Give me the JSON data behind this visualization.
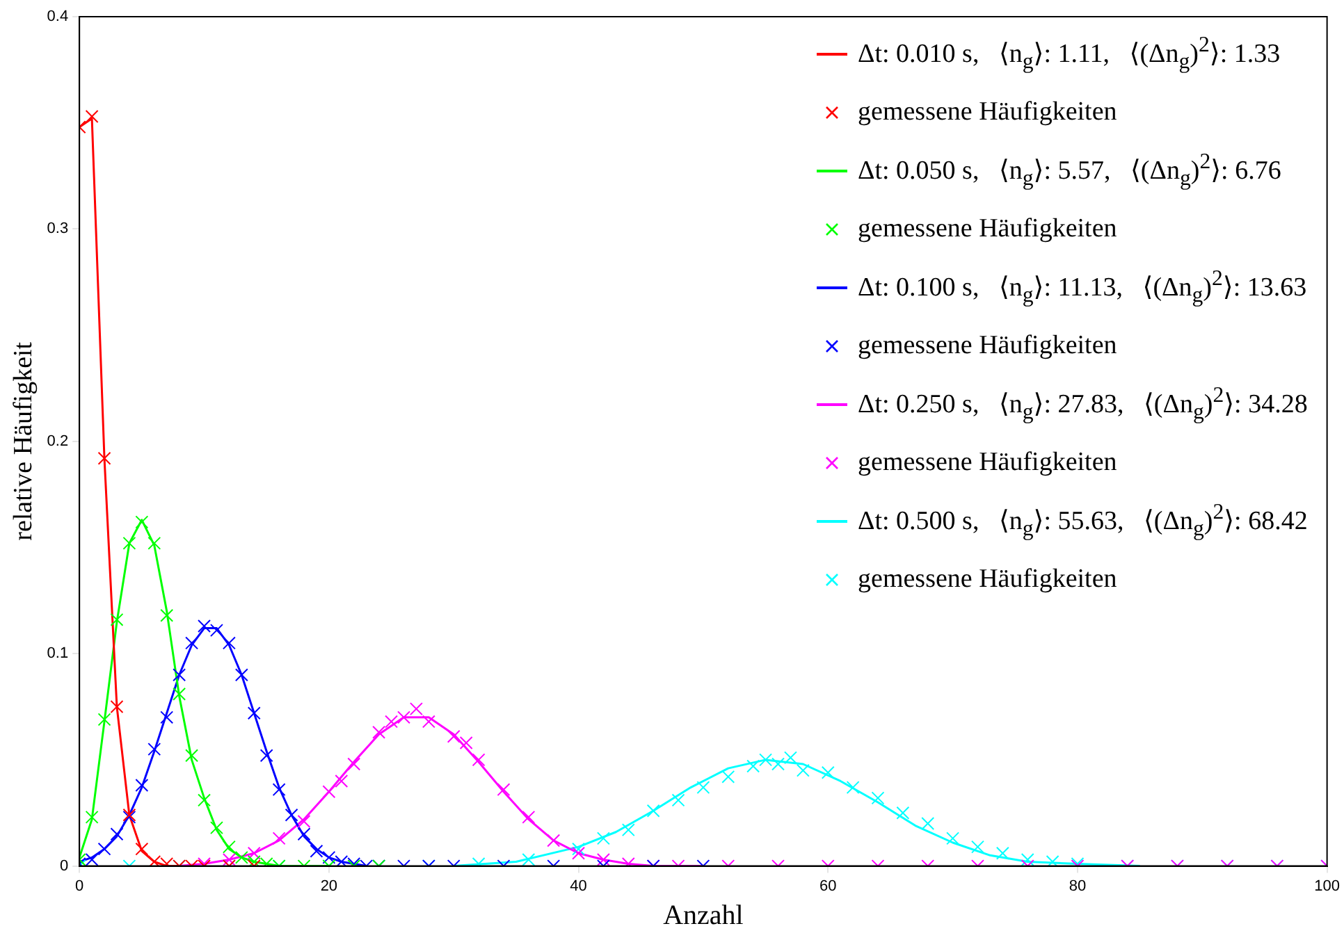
{
  "chart_data": {
    "type": "line",
    "xlabel": "Anzahl",
    "ylabel": "relative Häufigkeit",
    "xlim": [
      0,
      100
    ],
    "ylim": [
      0,
      0.4
    ],
    "xticks": [
      0,
      20,
      40,
      60,
      80,
      100
    ],
    "yticks": [
      0,
      0.1,
      0.2,
      0.3,
      0.4
    ],
    "grid": false,
    "legend": "top right",
    "series": [
      {
        "name": "Δt: 0.010 s,   ⟨n$_{g}$⟩: 1.11,   ⟨(Δn$_{g}$)$^{2}$⟩: 1.33",
        "color": "#ff0000",
        "marker": "none",
        "x": [
          0,
          1,
          2,
          3,
          4,
          5,
          6,
          7,
          8
        ],
        "values": [
          0.348,
          0.352,
          0.192,
          0.075,
          0.024,
          0.007,
          0.002,
          0,
          0
        ]
      },
      {
        "type": "scatter",
        "name": "gemessene Häufigkeiten",
        "color": "#ff0000",
        "marker": "cross",
        "x": [
          0,
          1,
          2,
          3,
          4,
          5,
          6,
          7,
          8,
          9,
          10,
          12,
          14
        ],
        "values": [
          0.348,
          0.353,
          0.192,
          0.075,
          0.024,
          0.008,
          0.002,
          0.001,
          0,
          0,
          0,
          0,
          0
        ]
      },
      {
        "name": "Δt: 0.050 s,   ⟨n$_{g}$⟩: 5.57,   ⟨(Δn$_{g}$)$^{2}$⟩: 6.76",
        "color": "#00ff00",
        "marker": "none",
        "x": [
          0,
          1,
          2,
          3,
          4,
          5,
          6,
          7,
          8,
          9,
          10,
          11,
          12,
          13,
          14,
          15,
          16,
          18,
          20
        ],
        "values": [
          0.004,
          0.022,
          0.068,
          0.115,
          0.152,
          0.163,
          0.151,
          0.12,
          0.08,
          0.05,
          0.032,
          0.017,
          0.008,
          0.004,
          0.002,
          0.001,
          0,
          0,
          0
        ]
      },
      {
        "type": "scatter",
        "name": "gemessene Häufigkeiten",
        "color": "#00ff00",
        "marker": "cross",
        "x": [
          0,
          1,
          2,
          3,
          4,
          5,
          6,
          7,
          8,
          9,
          10,
          11,
          12,
          13,
          14,
          15,
          16,
          18,
          20,
          22,
          24
        ],
        "values": [
          0.003,
          0.023,
          0.069,
          0.116,
          0.152,
          0.162,
          0.152,
          0.118,
          0.081,
          0.052,
          0.031,
          0.018,
          0.009,
          0.004,
          0.002,
          0.001,
          0,
          0,
          0,
          0,
          0
        ]
      },
      {
        "name": "Δt: 0.100 s,   ⟨n$_{g}$⟩: 11.13,   ⟨(Δn$_{g}$)$^{2}$⟩: 13.63",
        "color": "#0000ff",
        "marker": "none",
        "x": [
          0,
          1,
          2,
          3,
          4,
          5,
          6,
          7,
          8,
          9,
          10,
          11,
          12,
          13,
          14,
          15,
          16,
          17,
          18,
          19,
          20,
          21,
          22,
          23
        ],
        "values": [
          0.002,
          0.004,
          0.008,
          0.014,
          0.024,
          0.037,
          0.054,
          0.072,
          0.09,
          0.104,
          0.112,
          0.112,
          0.104,
          0.09,
          0.072,
          0.054,
          0.037,
          0.024,
          0.014,
          0.008,
          0.004,
          0.002,
          0.001,
          0
        ]
      },
      {
        "type": "scatter",
        "name": "gemessene Häufigkeiten",
        "color": "#0000ff",
        "marker": "cross",
        "x": [
          0,
          1,
          2,
          3,
          4,
          5,
          6,
          7,
          8,
          9,
          10,
          11,
          12,
          13,
          14,
          15,
          16,
          17,
          18,
          19,
          20,
          21,
          22,
          23,
          24,
          26,
          28,
          30,
          34,
          38,
          42,
          46,
          50
        ],
        "values": [
          0.001,
          0.003,
          0.008,
          0.015,
          0.023,
          0.038,
          0.055,
          0.07,
          0.09,
          0.105,
          0.113,
          0.111,
          0.105,
          0.09,
          0.072,
          0.052,
          0.036,
          0.024,
          0.015,
          0.007,
          0.004,
          0.002,
          0.001,
          0,
          0,
          0,
          0,
          0,
          0,
          0,
          0,
          0,
          0
        ]
      },
      {
        "name": "Δt: 0.250 s,   ⟨n$_{g}$⟩: 27.83,   ⟨(Δn$_{g}$)$^{2}$⟩: 34.28",
        "color": "#ff00ff",
        "marker": "none",
        "x": [
          8,
          10,
          12,
          14,
          16,
          18,
          20,
          22,
          24,
          26,
          28,
          30,
          32,
          34,
          36,
          38,
          40,
          42,
          44,
          46,
          50
        ],
        "values": [
          0,
          0.001,
          0.003,
          0.006,
          0.012,
          0.022,
          0.035,
          0.049,
          0.062,
          0.07,
          0.07,
          0.062,
          0.049,
          0.035,
          0.022,
          0.012,
          0.006,
          0.003,
          0.001,
          0,
          0
        ]
      },
      {
        "type": "scatter",
        "name": "gemessene Häufigkeiten",
        "color": "#ff00ff",
        "marker": "cross",
        "x": [
          10,
          12,
          14,
          16,
          18,
          20,
          21,
          22,
          24,
          25,
          26,
          27,
          28,
          30,
          31,
          32,
          34,
          36,
          38,
          40,
          42,
          44,
          46,
          48,
          52,
          56,
          60,
          64,
          68,
          72,
          76,
          80,
          84,
          88,
          92,
          96,
          100
        ],
        "values": [
          0.001,
          0.003,
          0.006,
          0.013,
          0.021,
          0.035,
          0.04,
          0.048,
          0.063,
          0.068,
          0.07,
          0.074,
          0.068,
          0.061,
          0.058,
          0.05,
          0.036,
          0.023,
          0.012,
          0.006,
          0.003,
          0.001,
          0,
          0,
          0,
          0,
          0,
          0,
          0,
          0,
          0,
          0,
          0,
          0,
          0,
          0,
          0
        ]
      },
      {
        "name": "Δt: 0.500 s,   ⟨n$_{g}$⟩: 55.63,   ⟨(Δn$_{g}$)$^{2}$⟩: 68.42",
        "color": "#00ffff",
        "marker": "none",
        "x": [
          30,
          35,
          40,
          43,
          46,
          49,
          52,
          55,
          58,
          61,
          64,
          67,
          70,
          73,
          76,
          80,
          85
        ],
        "values": [
          0,
          0.002,
          0.009,
          0.016,
          0.026,
          0.037,
          0.046,
          0.05,
          0.048,
          0.04,
          0.03,
          0.019,
          0.011,
          0.005,
          0.002,
          0.001,
          0
        ]
      },
      {
        "type": "scatter",
        "name": "gemessene Häufigkeiten",
        "color": "#00ffff",
        "marker": "cross",
        "x": [
          0,
          4,
          8,
          12,
          16,
          20,
          24,
          28,
          32,
          36,
          40,
          42,
          44,
          46,
          48,
          50,
          52,
          54,
          55,
          56,
          57,
          58,
          60,
          62,
          64,
          66,
          68,
          70,
          72,
          74,
          76,
          78,
          80,
          84,
          88,
          92,
          96,
          100
        ],
        "values": [
          0,
          0,
          0,
          0,
          0,
          0,
          0,
          0,
          0.001,
          0.003,
          0.008,
          0.013,
          0.017,
          0.026,
          0.031,
          0.037,
          0.042,
          0.047,
          0.05,
          0.048,
          0.051,
          0.045,
          0.044,
          0.037,
          0.032,
          0.025,
          0.02,
          0.013,
          0.009,
          0.006,
          0.003,
          0.002,
          0.001,
          0,
          0,
          0,
          0,
          0
        ]
      }
    ]
  }
}
